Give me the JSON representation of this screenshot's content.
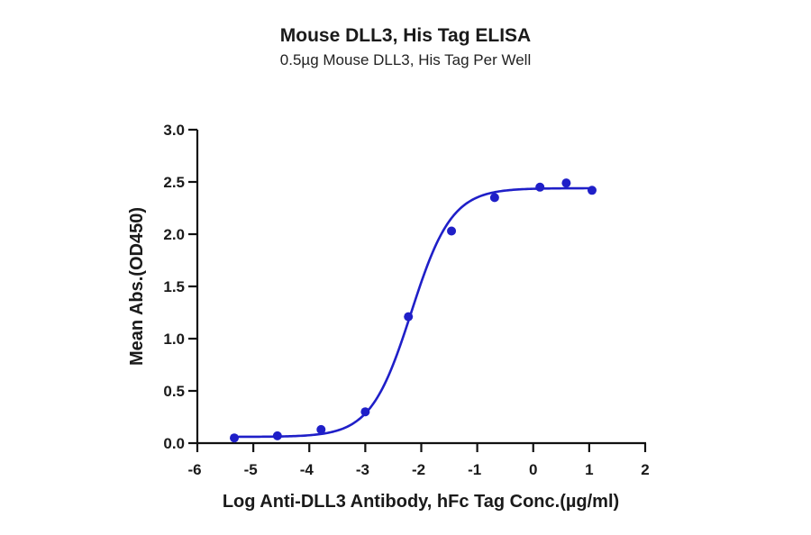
{
  "chart": {
    "title": "Mouse DLL3, His Tag ELISA",
    "subtitle": "0.5µg Mouse DLL3, His Tag Per Well",
    "colors": {
      "series": "#1f1fc8",
      "axis": "#111111"
    }
  },
  "chart_data": {
    "type": "scatter",
    "title": "Mouse DLL3, His Tag ELISA",
    "subtitle": "0.5µg Mouse DLL3, His Tag Per Well",
    "xlabel": "Log Anti-DLL3 Antibody, hFc Tag Conc.(µg/ml)",
    "ylabel": "Mean Abs.(OD450)",
    "xlim": [
      -6,
      2
    ],
    "ylim": [
      0,
      3.0
    ],
    "xticks": [
      -6,
      -5,
      -4,
      -3,
      -2,
      -1,
      0,
      1,
      2
    ],
    "yticks": [
      "0.0",
      "0.5",
      "1.0",
      "1.5",
      "2.0",
      "2.5",
      "3.0"
    ],
    "grid": false,
    "legend": null,
    "series": [
      {
        "name": "Mouse DLL3, His Tag",
        "color": "#1f1fc8",
        "x": [
          -5.34,
          -4.57,
          -3.79,
          -3.0,
          -2.23,
          -1.46,
          -0.69,
          0.12,
          0.59,
          1.05
        ],
        "y": [
          0.05,
          0.07,
          0.13,
          0.3,
          1.21,
          2.03,
          2.35,
          2.45,
          2.49,
          2.42
        ]
      }
    ],
    "fit": {
      "model": "4PL sigmoidal",
      "bottom": 0.06,
      "top": 2.44,
      "log_ec50": -2.18,
      "hill_slope": 1.2
    }
  }
}
